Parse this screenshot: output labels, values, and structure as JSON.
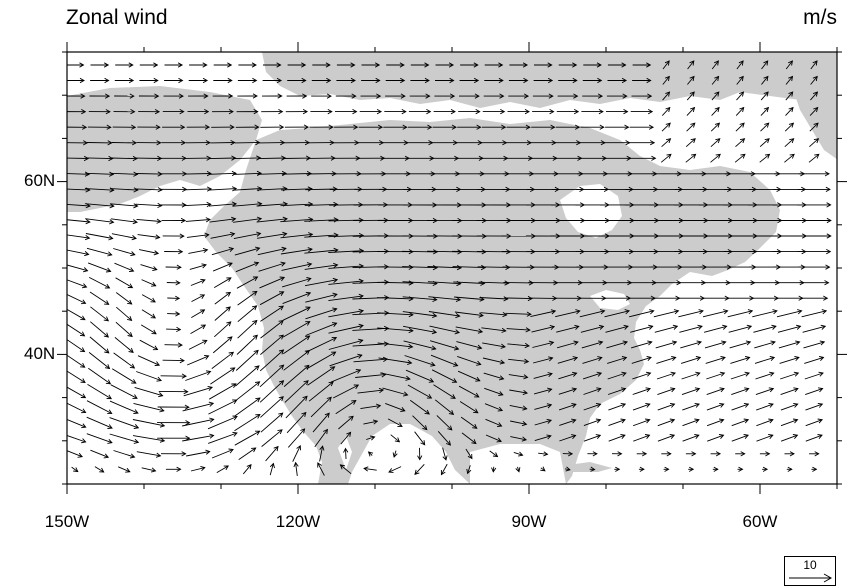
{
  "title": "Zonal wind",
  "units": "m/s",
  "map": {
    "extent": {
      "lon": [
        -150,
        -50
      ],
      "lat": [
        25,
        75
      ]
    },
    "land_color": "#cccccc",
    "ocean_color": "#ffffff",
    "vector_color": "#000000"
  },
  "y_ticks": [
    {
      "label": "60N",
      "lat": 60
    },
    {
      "label": "40N",
      "lat": 40
    }
  ],
  "x_ticks": [
    {
      "label": "150W",
      "lon": -150
    },
    {
      "label": "120W",
      "lon": -120
    },
    {
      "label": "90W",
      "lon": -90
    },
    {
      "label": "60W",
      "lon": -60
    }
  ],
  "reference_vector": {
    "value": "10"
  }
}
